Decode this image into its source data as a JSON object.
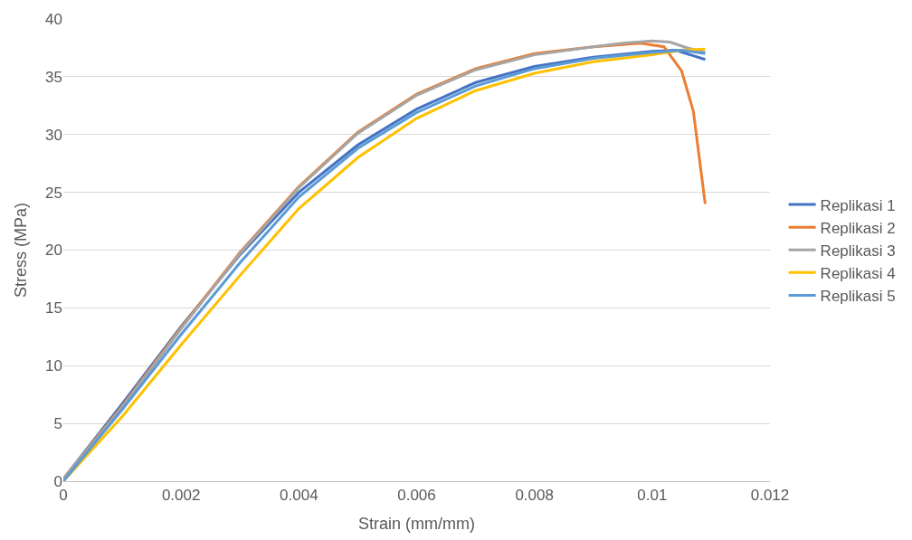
{
  "chart_data": {
    "type": "line",
    "xlabel": "Strain (mm/mm)",
    "ylabel": "Stress (MPa)",
    "xlim": [
      0,
      0.012
    ],
    "xticks": [
      0,
      0.002,
      0.004,
      0.006,
      0.008,
      0.01,
      0.012
    ],
    "ylim": [
      0,
      40
    ],
    "yticks": [
      0,
      5,
      10,
      15,
      20,
      25,
      30,
      35,
      40
    ],
    "grid": "y",
    "legend": "right",
    "marker": "none",
    "line_style": "solid",
    "series": [
      {
        "name": "Replikasi 1",
        "color": "#4472c4",
        "x": [
          0,
          0.001,
          0.002,
          0.003,
          0.004,
          0.005,
          0.006,
          0.007,
          0.008,
          0.009,
          0.01,
          0.0104,
          0.0109
        ],
        "values": [
          0.2,
          6.7,
          13.4,
          19.6,
          25,
          29.1,
          32.2,
          34.5,
          35.9,
          36.7,
          37.2,
          37.3,
          36.5
        ]
      },
      {
        "name": "Replikasi 2",
        "color": "#ed7d31",
        "x": [
          0,
          0.001,
          0.002,
          0.003,
          0.004,
          0.005,
          0.006,
          0.007,
          0.008,
          0.009,
          0.0098,
          0.0102,
          0.0105,
          0.0107,
          0.0108,
          0.0109
        ],
        "values": [
          0.2,
          6.5,
          13.3,
          19.8,
          25.5,
          30.2,
          33.5,
          35.7,
          37,
          37.6,
          37.9,
          37.6,
          35.5,
          32,
          28,
          24
        ]
      },
      {
        "name": "Replikasi 3",
        "color": "#a5a5a5",
        "x": [
          0,
          0.001,
          0.002,
          0.003,
          0.004,
          0.005,
          0.006,
          0.007,
          0.008,
          0.009,
          0.0095,
          0.01,
          0.0103,
          0.0106,
          0.0109
        ],
        "values": [
          0.2,
          6.4,
          13.2,
          19.7,
          25.4,
          30.1,
          33.4,
          35.6,
          36.9,
          37.6,
          37.9,
          38.1,
          38,
          37.5,
          37.1
        ]
      },
      {
        "name": "Replikasi 4",
        "color": "#ffc000",
        "x": [
          0,
          0.001,
          0.002,
          0.003,
          0.004,
          0.005,
          0.006,
          0.007,
          0.008,
          0.009,
          0.01,
          0.0105,
          0.0109
        ],
        "values": [
          0,
          5.6,
          11.8,
          17.8,
          23.6,
          28,
          31.4,
          33.8,
          35.3,
          36.3,
          36.9,
          37.3,
          37.4
        ]
      },
      {
        "name": "Replikasi 5",
        "color": "#5b9bd5",
        "x": [
          0,
          0.001,
          0.002,
          0.003,
          0.004,
          0.005,
          0.006,
          0.007,
          0.008,
          0.009,
          0.01,
          0.0105,
          0.0109
        ],
        "values": [
          0,
          6.2,
          12.7,
          18.9,
          24.6,
          28.8,
          31.9,
          34.2,
          35.7,
          36.6,
          37.1,
          37.3,
          37
        ]
      }
    ]
  }
}
